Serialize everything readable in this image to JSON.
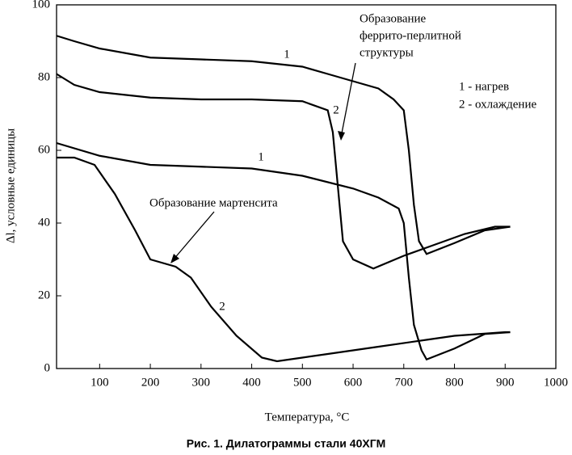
{
  "chart_data": {
    "type": "line",
    "caption": "Рис. 1. Дилатограммы стали 40ХГМ",
    "xlabel": "Температура, °C",
    "ylabel": "Δl, условные единицы",
    "xlim": [
      15,
      1000
    ],
    "ylim": [
      0,
      100
    ],
    "xticks": [
      100,
      200,
      300,
      400,
      500,
      600,
      700,
      800,
      900,
      1000
    ],
    "yticks": [
      0,
      20,
      40,
      60,
      80,
      100
    ],
    "color": "#000000",
    "series": [
      {
        "name": "1",
        "x": [
          15,
          50,
          100,
          200,
          300,
          400,
          500,
          550,
          600,
          650,
          680,
          700,
          710,
          720,
          730,
          745,
          800,
          860,
          910
        ],
        "values": [
          91.5,
          90,
          88,
          85.5,
          85,
          84.5,
          83,
          81,
          79,
          77,
          74,
          71,
          60,
          45,
          35,
          31.5,
          34.5,
          38,
          39
        ]
      },
      {
        "name": "2",
        "x": [
          15,
          50,
          100,
          200,
          300,
          400,
          500,
          550,
          560,
          570,
          580,
          600,
          640,
          700,
          760,
          820,
          880,
          910
        ],
        "values": [
          81,
          78,
          76,
          74.5,
          74,
          74,
          73.5,
          71,
          65,
          50,
          35,
          30,
          27.5,
          31,
          34,
          37,
          39,
          39
        ]
      },
      {
        "name": "1",
        "x": [
          15,
          100,
          200,
          300,
          400,
          500,
          600,
          650,
          690,
          700,
          710,
          720,
          735,
          745,
          800,
          860,
          910
        ],
        "values": [
          62,
          58.5,
          56,
          55.5,
          55,
          53,
          49.5,
          47,
          44,
          40,
          25,
          12,
          5,
          2.5,
          5.5,
          9.5,
          10
        ]
      },
      {
        "name": "2",
        "x": [
          15,
          50,
          90,
          130,
          170,
          200,
          250,
          280,
          320,
          370,
          420,
          450,
          500,
          550,
          650,
          750,
          800,
          900,
          910
        ],
        "values": [
          58,
          58,
          56,
          48,
          38,
          30,
          28,
          25,
          17,
          9,
          3,
          2,
          3,
          4,
          6,
          8,
          9,
          10,
          10
        ]
      }
    ],
    "annotations": [
      [
        "Образование",
        "феррито-перлитной",
        "структуры"
      ],
      [
        "Образование мартенсита"
      ]
    ],
    "notes": [
      "1 - нагрев",
      "2 - охлаждение"
    ]
  }
}
